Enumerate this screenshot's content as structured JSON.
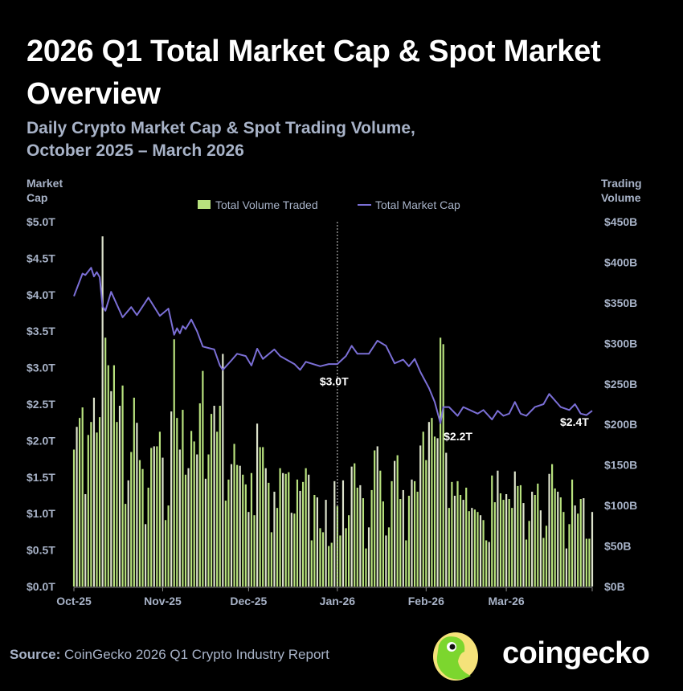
{
  "header": {
    "title": "2026 Q1 Total Market Cap & Spot Market Overview",
    "subtitle_line1": "Daily Crypto Market Cap & Spot Trading Volume,",
    "subtitle_line2": "October 2025 – March 2026"
  },
  "footer": {
    "source_label": "Source:",
    "source_text": "CoinGecko 2026 Q1 Crypto Industry Report",
    "brand": "coingecko"
  },
  "colors": {
    "background": "#000000",
    "volume_bar": "#b8e27e",
    "volume_bar_alt": "#dde3cc",
    "market_cap_line": "#7b6fd6",
    "subtitle": "#a8b3c8"
  },
  "chart_data": {
    "type": "bar+line",
    "left_axis": {
      "title_line1": "Market",
      "title_line2": "Cap",
      "range": [
        0,
        5
      ],
      "ticks": [
        "$0.0T",
        "$0.5T",
        "$1.0T",
        "$1.5T",
        "$2.0T",
        "$2.5T",
        "$3.0T",
        "$3.5T",
        "$4.0T",
        "$4.5T",
        "$5.0T"
      ]
    },
    "right_axis": {
      "title_line1": "Trading",
      "title_line2": "Volume",
      "range": [
        0,
        450
      ],
      "ticks": [
        "$0B",
        "$50B",
        "$100B",
        "$150B",
        "$200B",
        "$250B",
        "$300B",
        "$350B",
        "$400B",
        "$450B"
      ]
    },
    "x_axis": {
      "range": [
        "2025-10-01",
        "2026-03-31"
      ],
      "ticks": [
        {
          "label": "Oct-25",
          "date": "2025-10-01"
        },
        {
          "label": "Nov-25",
          "date": "2025-11-01"
        },
        {
          "label": "Dec-25",
          "date": "2025-12-01"
        },
        {
          "label": "Jan-26",
          "date": "2026-01-01"
        },
        {
          "label": "Feb-26",
          "date": "2026-02-01"
        },
        {
          "label": "Mar-26",
          "date": "2026-03-01"
        }
      ]
    },
    "legend": {
      "placement": "top-center",
      "entries": [
        {
          "name": "Total Volume Traded",
          "kind": "bar"
        },
        {
          "name": "Total Market Cap",
          "kind": "line"
        }
      ]
    },
    "grid": false,
    "reference_line": {
      "date": "2026-01-01",
      "style": "dashed"
    },
    "annotations": [
      {
        "text": "$3.0T",
        "date": "2026-01-01",
        "value": 3.0
      },
      {
        "text": "$2.2T",
        "date": "2026-02-06",
        "value": 2.2
      },
      {
        "text": "$2.4T",
        "date": "2026-03-31",
        "value": 2.4
      }
    ],
    "series": [
      {
        "name": "Total Volume Traded",
        "axis": "right",
        "unit": "B USD",
        "start_date": "2025-10-01",
        "frequency": "daily",
        "values": [
          169,
          197,
          208,
          221,
          114,
          187,
          203,
          233,
          190,
          209,
          432,
          307,
          273,
          241,
          273,
          203,
          223,
          248,
          102,
          131,
          166,
          233,
          202,
          156,
          145,
          77,
          122,
          171,
          173,
          173,
          191,
          159,
          82,
          100,
          216,
          305,
          208,
          169,
          218,
          138,
          146,
          192,
          179,
          163,
          226,
          266,
          133,
          163,
          213,
          223,
          191,
          223,
          287,
          106,
          132,
          151,
          176,
          150,
          149,
          138,
          126,
          92,
          140,
          88,
          201,
          172,
          172,
          146,
          128,
          67,
          117,
          97,
          146,
          140,
          139,
          141,
          91,
          90,
          132,
          118,
          129,
          146,
          138,
          57,
          113,
          110,
          72,
          67,
          107,
          50,
          54,
          130,
          99,
          63,
          131,
          72,
          88,
          148,
          152,
          122,
          125,
          109,
          47,
          73,
          119,
          168,
          173,
          143,
          105,
          63,
          73,
          130,
          155,
          162,
          108,
          119,
          57,
          112,
          132,
          130,
          117,
          174,
          191,
          156,
          203,
          208,
          185,
          183,
          307,
          299,
          165,
          97,
          129,
          112,
          130,
          113,
          107,
          122,
          93,
          97,
          95,
          92,
          88,
          82,
          57,
          55,
          137,
          104,
          143,
          115,
          107,
          114,
          108,
          97,
          142,
          124,
          125,
          103,
          58,
          81,
          117,
          113,
          127,
          94,
          60,
          75,
          139,
          151,
          121,
          117,
          110,
          92,
          47,
          77,
          132,
          100,
          90,
          108,
          109,
          59,
          59,
          92
        ]
      },
      {
        "name": "Total Market Cap",
        "axis": "left",
        "unit": "T USD",
        "points": [
          [
            "2025-10-01",
            3.98
          ],
          [
            "2025-10-04",
            4.29
          ],
          [
            "2025-10-05",
            4.27
          ],
          [
            "2025-10-07",
            4.37
          ],
          [
            "2025-10-08",
            4.25
          ],
          [
            "2025-10-09",
            4.31
          ],
          [
            "2025-10-10",
            4.24
          ],
          [
            "2025-10-11",
            3.84
          ],
          [
            "2025-10-12",
            3.78
          ],
          [
            "2025-10-14",
            4.04
          ],
          [
            "2025-10-18",
            3.69
          ],
          [
            "2025-10-21",
            3.83
          ],
          [
            "2025-10-23",
            3.72
          ],
          [
            "2025-10-27",
            3.96
          ],
          [
            "2025-10-31",
            3.71
          ],
          [
            "2025-11-03",
            3.81
          ],
          [
            "2025-11-05",
            3.45
          ],
          [
            "2025-11-06",
            3.54
          ],
          [
            "2025-11-07",
            3.47
          ],
          [
            "2025-11-08",
            3.57
          ],
          [
            "2025-11-09",
            3.53
          ],
          [
            "2025-11-11",
            3.66
          ],
          [
            "2025-11-13",
            3.5
          ],
          [
            "2025-11-15",
            3.29
          ],
          [
            "2025-11-17",
            3.27
          ],
          [
            "2025-11-19",
            3.25
          ],
          [
            "2025-11-21",
            3.03
          ],
          [
            "2025-11-22",
            2.97
          ],
          [
            "2025-11-25",
            3.1
          ],
          [
            "2025-11-27",
            3.19
          ],
          [
            "2025-11-30",
            3.16
          ],
          [
            "2025-12-02",
            3.03
          ],
          [
            "2025-12-04",
            3.26
          ],
          [
            "2025-12-06",
            3.12
          ],
          [
            "2025-12-10",
            3.25
          ],
          [
            "2025-12-12",
            3.16
          ],
          [
            "2025-12-17",
            3.05
          ],
          [
            "2025-12-19",
            2.97
          ],
          [
            "2025-12-21",
            3.08
          ],
          [
            "2025-12-26",
            3.02
          ],
          [
            "2025-12-29",
            3.05
          ],
          [
            "2026-01-01",
            3.05
          ],
          [
            "2026-01-04",
            3.16
          ],
          [
            "2026-01-06",
            3.3
          ],
          [
            "2026-01-08",
            3.19
          ],
          [
            "2026-01-12",
            3.19
          ],
          [
            "2026-01-15",
            3.37
          ],
          [
            "2026-01-18",
            3.3
          ],
          [
            "2026-01-21",
            3.06
          ],
          [
            "2026-01-24",
            3.11
          ],
          [
            "2026-01-26",
            3.02
          ],
          [
            "2026-01-28",
            3.12
          ],
          [
            "2026-01-30",
            2.94
          ],
          [
            "2026-02-02",
            2.72
          ],
          [
            "2026-02-04",
            2.53
          ],
          [
            "2026-02-06",
            2.24
          ],
          [
            "2026-02-07",
            2.46
          ],
          [
            "2026-02-09",
            2.46
          ],
          [
            "2026-02-12",
            2.34
          ],
          [
            "2026-02-14",
            2.46
          ],
          [
            "2026-02-19",
            2.37
          ],
          [
            "2026-02-21",
            2.42
          ],
          [
            "2026-02-24",
            2.29
          ],
          [
            "2026-02-26",
            2.41
          ],
          [
            "2026-02-28",
            2.34
          ],
          [
            "2026-03-02",
            2.37
          ],
          [
            "2026-03-04",
            2.53
          ],
          [
            "2026-03-06",
            2.37
          ],
          [
            "2026-03-08",
            2.34
          ],
          [
            "2026-03-11",
            2.46
          ],
          [
            "2026-03-14",
            2.5
          ],
          [
            "2026-03-16",
            2.64
          ],
          [
            "2026-03-20",
            2.46
          ],
          [
            "2026-03-23",
            2.42
          ],
          [
            "2026-03-25",
            2.5
          ],
          [
            "2026-03-27",
            2.37
          ],
          [
            "2026-03-29",
            2.35
          ],
          [
            "2026-03-31",
            2.41
          ]
        ]
      }
    ]
  }
}
